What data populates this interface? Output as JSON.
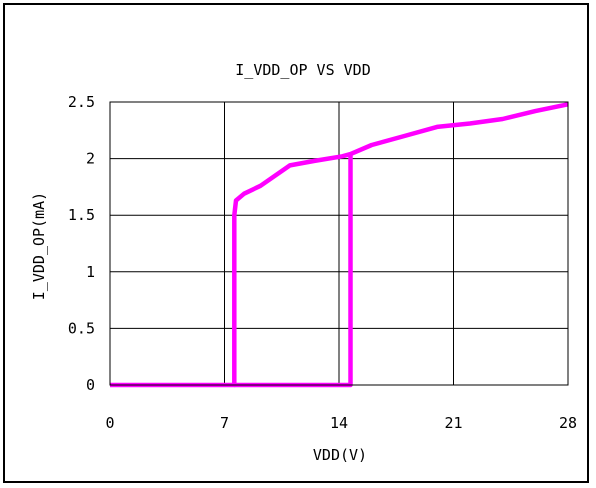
{
  "chart_data": {
    "type": "line",
    "title": "I_VDD_OP VS VDD",
    "xlabel": "VDD(V)",
    "ylabel": "I_VDD_OP(mA)",
    "xlim": [
      0,
      28
    ],
    "ylim": [
      0,
      2.5
    ],
    "x_ticks": [
      0,
      7,
      14,
      21,
      28
    ],
    "x_tick_labels": [
      "0",
      "7",
      "14",
      "21",
      "28"
    ],
    "y_ticks": [
      0,
      0.5,
      1,
      1.5,
      2,
      2.5
    ],
    "y_tick_labels": [
      "0",
      "0.5",
      "1",
      "1.5",
      "2",
      "2.5"
    ],
    "grid": true,
    "line_color": "#ff00ff",
    "series": [
      {
        "x": [
          0,
          7.6,
          7.6,
          7.7,
          8.2,
          9.2,
          11,
          12.5,
          14.2,
          14.7,
          16,
          18,
          20,
          22,
          24,
          26,
          28
        ],
        "y": [
          0,
          0,
          1.5,
          1.63,
          1.69,
          1.76,
          1.94,
          1.98,
          2.02,
          2.04,
          2.12,
          2.2,
          2.28,
          2.31,
          2.35,
          2.42,
          2.48
        ]
      },
      {
        "x": [
          7.6,
          14.7,
          14.7
        ],
        "y": [
          0,
          0,
          2.03
        ]
      }
    ]
  }
}
